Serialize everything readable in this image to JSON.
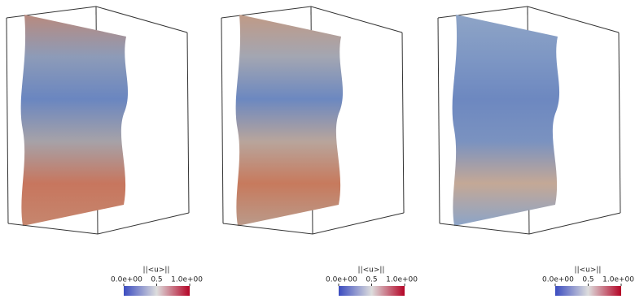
{
  "panels": [
    {
      "colorbar": {
        "title": "||<u>||",
        "tick_labels": [
          "0.0e+00",
          "0.5",
          "1.0e+00"
        ]
      }
    },
    {
      "colorbar": {
        "title": "||<u>||",
        "tick_labels": [
          "0.0e+00",
          "0.5",
          "1.0e+00"
        ]
      }
    },
    {
      "colorbar": {
        "title": "||<u>||",
        "tick_labels": [
          "0.0e+00",
          "0.5",
          "1.0e+00"
        ]
      }
    }
  ]
}
